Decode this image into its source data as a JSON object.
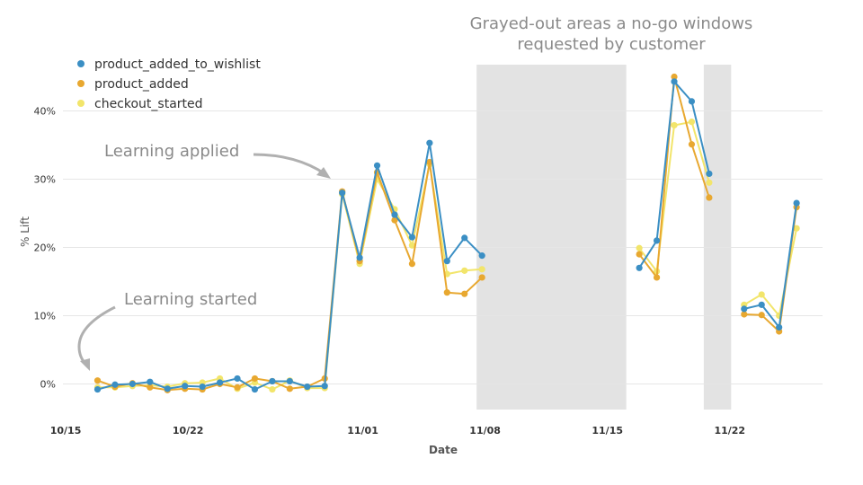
{
  "chart_data": {
    "type": "line",
    "xlabel": "Date",
    "ylabel": "% Lift",
    "ylim": [
      -4,
      47
    ],
    "y_ticks": [
      {
        "value": 0,
        "label": "0%"
      },
      {
        "value": 10,
        "label": "10%"
      },
      {
        "value": 20,
        "label": "20%"
      },
      {
        "value": 30,
        "label": "30%"
      },
      {
        "value": 40,
        "label": "40%"
      }
    ],
    "x_ticks": [
      {
        "date": "2023-10-15",
        "label": "10/15"
      },
      {
        "date": "2023-10-22",
        "label": "10/22"
      },
      {
        "date": "2023-11-01",
        "label": "11/01"
      },
      {
        "date": "2023-11-08",
        "label": "11/08"
      },
      {
        "date": "2023-11-15",
        "label": "11/15"
      },
      {
        "date": "2023-11-22",
        "label": "11/22"
      }
    ],
    "grid": "horizontal",
    "legend": "top-left",
    "shaded_regions": [
      {
        "from": "2023-11-07",
        "to": "2023-11-15"
      },
      {
        "from": "2023-11-20",
        "to": "2023-11-21"
      }
    ],
    "series": [
      {
        "name": "product_added_to_wishlist",
        "color": "#3b8fc4",
        "points": [
          [
            "2023-10-16",
            -0.8
          ],
          [
            "2023-10-17",
            -0.1
          ],
          [
            "2023-10-18",
            0.0
          ],
          [
            "2023-10-19",
            0.3
          ],
          [
            "2023-10-20",
            -0.7
          ],
          [
            "2023-10-21",
            -0.3
          ],
          [
            "2023-10-22",
            -0.4
          ],
          [
            "2023-10-23",
            0.2
          ],
          [
            "2023-10-24",
            0.8
          ],
          [
            "2023-10-25",
            -0.8
          ],
          [
            "2023-10-26",
            0.4
          ],
          [
            "2023-10-27",
            0.4
          ],
          [
            "2023-10-28",
            -0.4
          ],
          [
            "2023-10-29",
            -0.3
          ],
          [
            "2023-10-30",
            28.0
          ],
          [
            "2023-10-31",
            18.5
          ],
          [
            "2023-11-01",
            32.0
          ],
          [
            "2023-11-02",
            24.8
          ],
          [
            "2023-11-03",
            21.5
          ],
          [
            "2023-11-04",
            35.3
          ],
          [
            "2023-11-05",
            18.0
          ],
          [
            "2023-11-06",
            21.4
          ],
          [
            "2023-11-07",
            18.8
          ],
          null,
          [
            "2023-11-16",
            17.0
          ],
          [
            "2023-11-17",
            21.0
          ],
          [
            "2023-11-18",
            44.3
          ],
          [
            "2023-11-19",
            41.4
          ],
          [
            "2023-11-20",
            30.8
          ],
          null,
          [
            "2023-11-22",
            11.0
          ],
          [
            "2023-11-23",
            11.6
          ],
          [
            "2023-11-24",
            8.3
          ],
          [
            "2023-11-25",
            26.5
          ]
        ]
      },
      {
        "name": "product_added",
        "color": "#e8a830",
        "points": [
          [
            "2023-10-16",
            0.5
          ],
          [
            "2023-10-17",
            -0.4
          ],
          [
            "2023-10-18",
            0.1
          ],
          [
            "2023-10-19",
            -0.5
          ],
          [
            "2023-10-20",
            -0.9
          ],
          [
            "2023-10-21",
            -0.7
          ],
          [
            "2023-10-22",
            -0.8
          ],
          [
            "2023-10-23",
            0.0
          ],
          [
            "2023-10-24",
            -0.5
          ],
          [
            "2023-10-25",
            0.8
          ],
          [
            "2023-10-26",
            0.4
          ],
          [
            "2023-10-27",
            -0.7
          ],
          [
            "2023-10-28",
            -0.4
          ],
          [
            "2023-10-29",
            0.8
          ],
          [
            "2023-10-30",
            28.2
          ],
          [
            "2023-10-31",
            18.0
          ],
          [
            "2023-11-01",
            31.0
          ],
          [
            "2023-11-02",
            24.0
          ],
          [
            "2023-11-03",
            17.6
          ],
          [
            "2023-11-04",
            32.5
          ],
          [
            "2023-11-05",
            13.4
          ],
          [
            "2023-11-06",
            13.2
          ],
          [
            "2023-11-07",
            15.6
          ],
          null,
          [
            "2023-11-16",
            19.0
          ],
          [
            "2023-11-17",
            15.6
          ],
          [
            "2023-11-18",
            45.0
          ],
          [
            "2023-11-19",
            35.1
          ],
          [
            "2023-11-20",
            27.3
          ],
          null,
          [
            "2023-11-22",
            10.2
          ],
          [
            "2023-11-23",
            10.1
          ],
          [
            "2023-11-24",
            7.7
          ],
          [
            "2023-11-25",
            25.9
          ]
        ]
      },
      {
        "name": "checkout_started",
        "color": "#f2e56b",
        "points": [
          [
            "2023-10-16",
            -0.5
          ],
          [
            "2023-10-17",
            -0.5
          ],
          [
            "2023-10-18",
            -0.3
          ],
          [
            "2023-10-19",
            -0.2
          ],
          [
            "2023-10-20",
            -0.4
          ],
          [
            "2023-10-21",
            0.1
          ],
          [
            "2023-10-22",
            0.2
          ],
          [
            "2023-10-23",
            0.8
          ],
          [
            "2023-10-24",
            -0.7
          ],
          [
            "2023-10-25",
            0.2
          ],
          [
            "2023-10-26",
            -0.8
          ],
          [
            "2023-10-27",
            0.5
          ],
          [
            "2023-10-28",
            -0.6
          ],
          [
            "2023-10-29",
            -0.6
          ],
          [
            "2023-10-30",
            27.8
          ],
          [
            "2023-10-31",
            17.6
          ],
          [
            "2023-11-01",
            30.0
          ],
          [
            "2023-11-02",
            25.6
          ],
          [
            "2023-11-03",
            20.3
          ],
          [
            "2023-11-04",
            32.2
          ],
          [
            "2023-11-05",
            16.1
          ],
          [
            "2023-11-06",
            16.6
          ],
          [
            "2023-11-07",
            16.8
          ],
          null,
          [
            "2023-11-16",
            19.9
          ],
          [
            "2023-11-17",
            16.5
          ],
          [
            "2023-11-18",
            37.9
          ],
          [
            "2023-11-19",
            38.4
          ],
          [
            "2023-11-20",
            29.5
          ],
          null,
          [
            "2023-11-22",
            11.6
          ],
          [
            "2023-11-23",
            13.1
          ],
          [
            "2023-11-24",
            10.0
          ],
          [
            "2023-11-25",
            22.8
          ]
        ]
      }
    ],
    "annotations": [
      {
        "text": "Learning applied",
        "points_to": [
          "2023-10-30",
          28.2
        ]
      },
      {
        "text": "Learning started",
        "points_to": [
          "2023-10-16",
          0.5
        ]
      },
      {
        "text_lines": [
          "Grayed-out areas a no-go windows",
          "requested by customer"
        ]
      }
    ]
  }
}
